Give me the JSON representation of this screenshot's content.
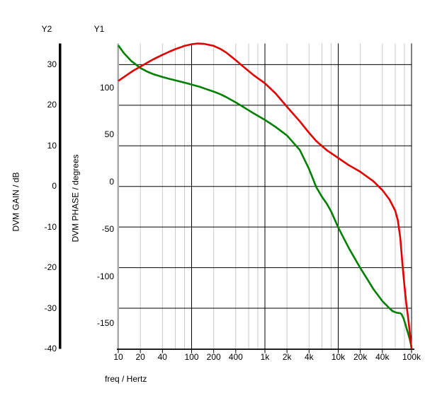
{
  "chart": {
    "y2_header": "Y2",
    "y1_header": "Y1",
    "y2_axis_label": "DVM GAIN / dB",
    "y1_axis_label": "DVM PHASE / degrees",
    "x_axis_label": "freq / Hertz",
    "colors": {
      "gain_curve": "#e00000",
      "phase_curve": "#008000",
      "major_grid": "#000000",
      "minor_grid": "#c9c9c9",
      "y2_axis_bar": "#000000",
      "y1_axis_bar": "#a9a9a9",
      "background": "#ffffff",
      "text": "#000000"
    }
  },
  "chart_data": {
    "type": "line",
    "title": "",
    "x_axis": {
      "label": "freq / Hertz",
      "scale": "log",
      "min": 10,
      "max": 100000,
      "tick_labels": [
        "10",
        "20",
        "40",
        "100",
        "200",
        "400",
        "1k",
        "2k",
        "4k",
        "10k",
        "20k",
        "40k",
        "100k"
      ],
      "tick_values": [
        10,
        20,
        40,
        100,
        200,
        400,
        1000,
        2000,
        4000,
        10000,
        20000,
        40000,
        100000
      ],
      "major_gridline_values": [
        100,
        1000,
        10000,
        100000
      ],
      "minor_gridline_values": [
        20,
        40,
        60,
        80,
        200,
        400,
        600,
        800,
        2000,
        4000,
        6000,
        8000,
        20000,
        40000,
        60000,
        80000
      ]
    },
    "y2_axis": {
      "label": "DVM GAIN / dB",
      "min": -40,
      "max": 35.2,
      "ticks": [
        30,
        20,
        10,
        0,
        -10,
        -20,
        -30,
        -40
      ],
      "gridline_values": [
        30,
        20,
        10,
        0,
        -10,
        -20,
        -30
      ]
    },
    "y1_axis": {
      "label": "DVM PHASE / degrees",
      "min": -176.6,
      "max": 147,
      "ticks": [
        100,
        50,
        0,
        -50,
        -100,
        -150
      ]
    },
    "grid": "on",
    "legend": "none",
    "series": [
      {
        "name": "DVM PHASE",
        "axis": "y1",
        "color": "#008000",
        "points": [
          [
            10,
            145
          ],
          [
            12,
            136.5
          ],
          [
            15,
            128.5
          ],
          [
            20,
            121
          ],
          [
            25,
            117
          ],
          [
            30,
            114.5
          ],
          [
            40,
            111.5
          ],
          [
            50,
            109.5
          ],
          [
            60,
            108
          ],
          [
            80,
            105.5
          ],
          [
            100,
            103.5
          ],
          [
            130,
            101
          ],
          [
            160,
            98.5
          ],
          [
            200,
            96
          ],
          [
            250,
            93
          ],
          [
            300,
            90
          ],
          [
            400,
            84.5
          ],
          [
            500,
            80
          ],
          [
            700,
            73
          ],
          [
            1000,
            66
          ],
          [
            1400,
            58.5
          ],
          [
            2000,
            49.5
          ],
          [
            3000,
            34
          ],
          [
            4000,
            14
          ],
          [
            4500,
            4
          ],
          [
            5000,
            -5
          ],
          [
            6000,
            -15.5
          ],
          [
            7000,
            -23
          ],
          [
            8000,
            -31
          ],
          [
            10000,
            -48
          ],
          [
            14000,
            -70
          ],
          [
            20000,
            -91
          ],
          [
            25000,
            -103
          ],
          [
            30000,
            -113
          ],
          [
            40000,
            -126
          ],
          [
            50000,
            -133.5
          ],
          [
            55000,
            -136.5
          ],
          [
            60000,
            -137.8
          ],
          [
            65000,
            -138.5
          ],
          [
            70000,
            -138.8
          ],
          [
            73000,
            -139.8
          ],
          [
            78000,
            -144.5
          ],
          [
            82000,
            -150
          ],
          [
            86000,
            -155.5
          ],
          [
            90000,
            -160.5
          ],
          [
            95000,
            -167
          ],
          [
            100000,
            -175
          ]
        ]
      },
      {
        "name": "DVM GAIN",
        "axis": "y2",
        "color": "#e00000",
        "points": [
          [
            10,
            26.0
          ],
          [
            13,
            27.4
          ],
          [
            16,
            28.5
          ],
          [
            20,
            29.5
          ],
          [
            25,
            30.5
          ],
          [
            30,
            31.3
          ],
          [
            40,
            32.4
          ],
          [
            50,
            33.2
          ],
          [
            60,
            33.8
          ],
          [
            80,
            34.6
          ],
          [
            100,
            35.0
          ],
          [
            120,
            35.2
          ],
          [
            150,
            35.1
          ],
          [
            200,
            34.6
          ],
          [
            250,
            33.8
          ],
          [
            300,
            32.9
          ],
          [
            400,
            31.1
          ],
          [
            500,
            29.6
          ],
          [
            700,
            27.4
          ],
          [
            1000,
            25.4
          ],
          [
            1400,
            22.9
          ],
          [
            2000,
            19.6
          ],
          [
            3000,
            16.0
          ],
          [
            4000,
            13.2
          ],
          [
            5000,
            11.2
          ],
          [
            7000,
            8.9
          ],
          [
            10000,
            7.0
          ],
          [
            14000,
            5.2
          ],
          [
            20000,
            3.6
          ],
          [
            30000,
            1.3
          ],
          [
            40000,
            -0.9
          ],
          [
            50000,
            -3.2
          ],
          [
            60000,
            -6.0
          ],
          [
            65000,
            -8.3
          ],
          [
            70000,
            -12.5
          ],
          [
            75000,
            -19.0
          ],
          [
            80000,
            -24.5
          ],
          [
            85000,
            -29.0
          ],
          [
            90000,
            -32.5
          ],
          [
            95000,
            -36.2
          ],
          [
            100000,
            -40.0
          ]
        ]
      }
    ]
  }
}
